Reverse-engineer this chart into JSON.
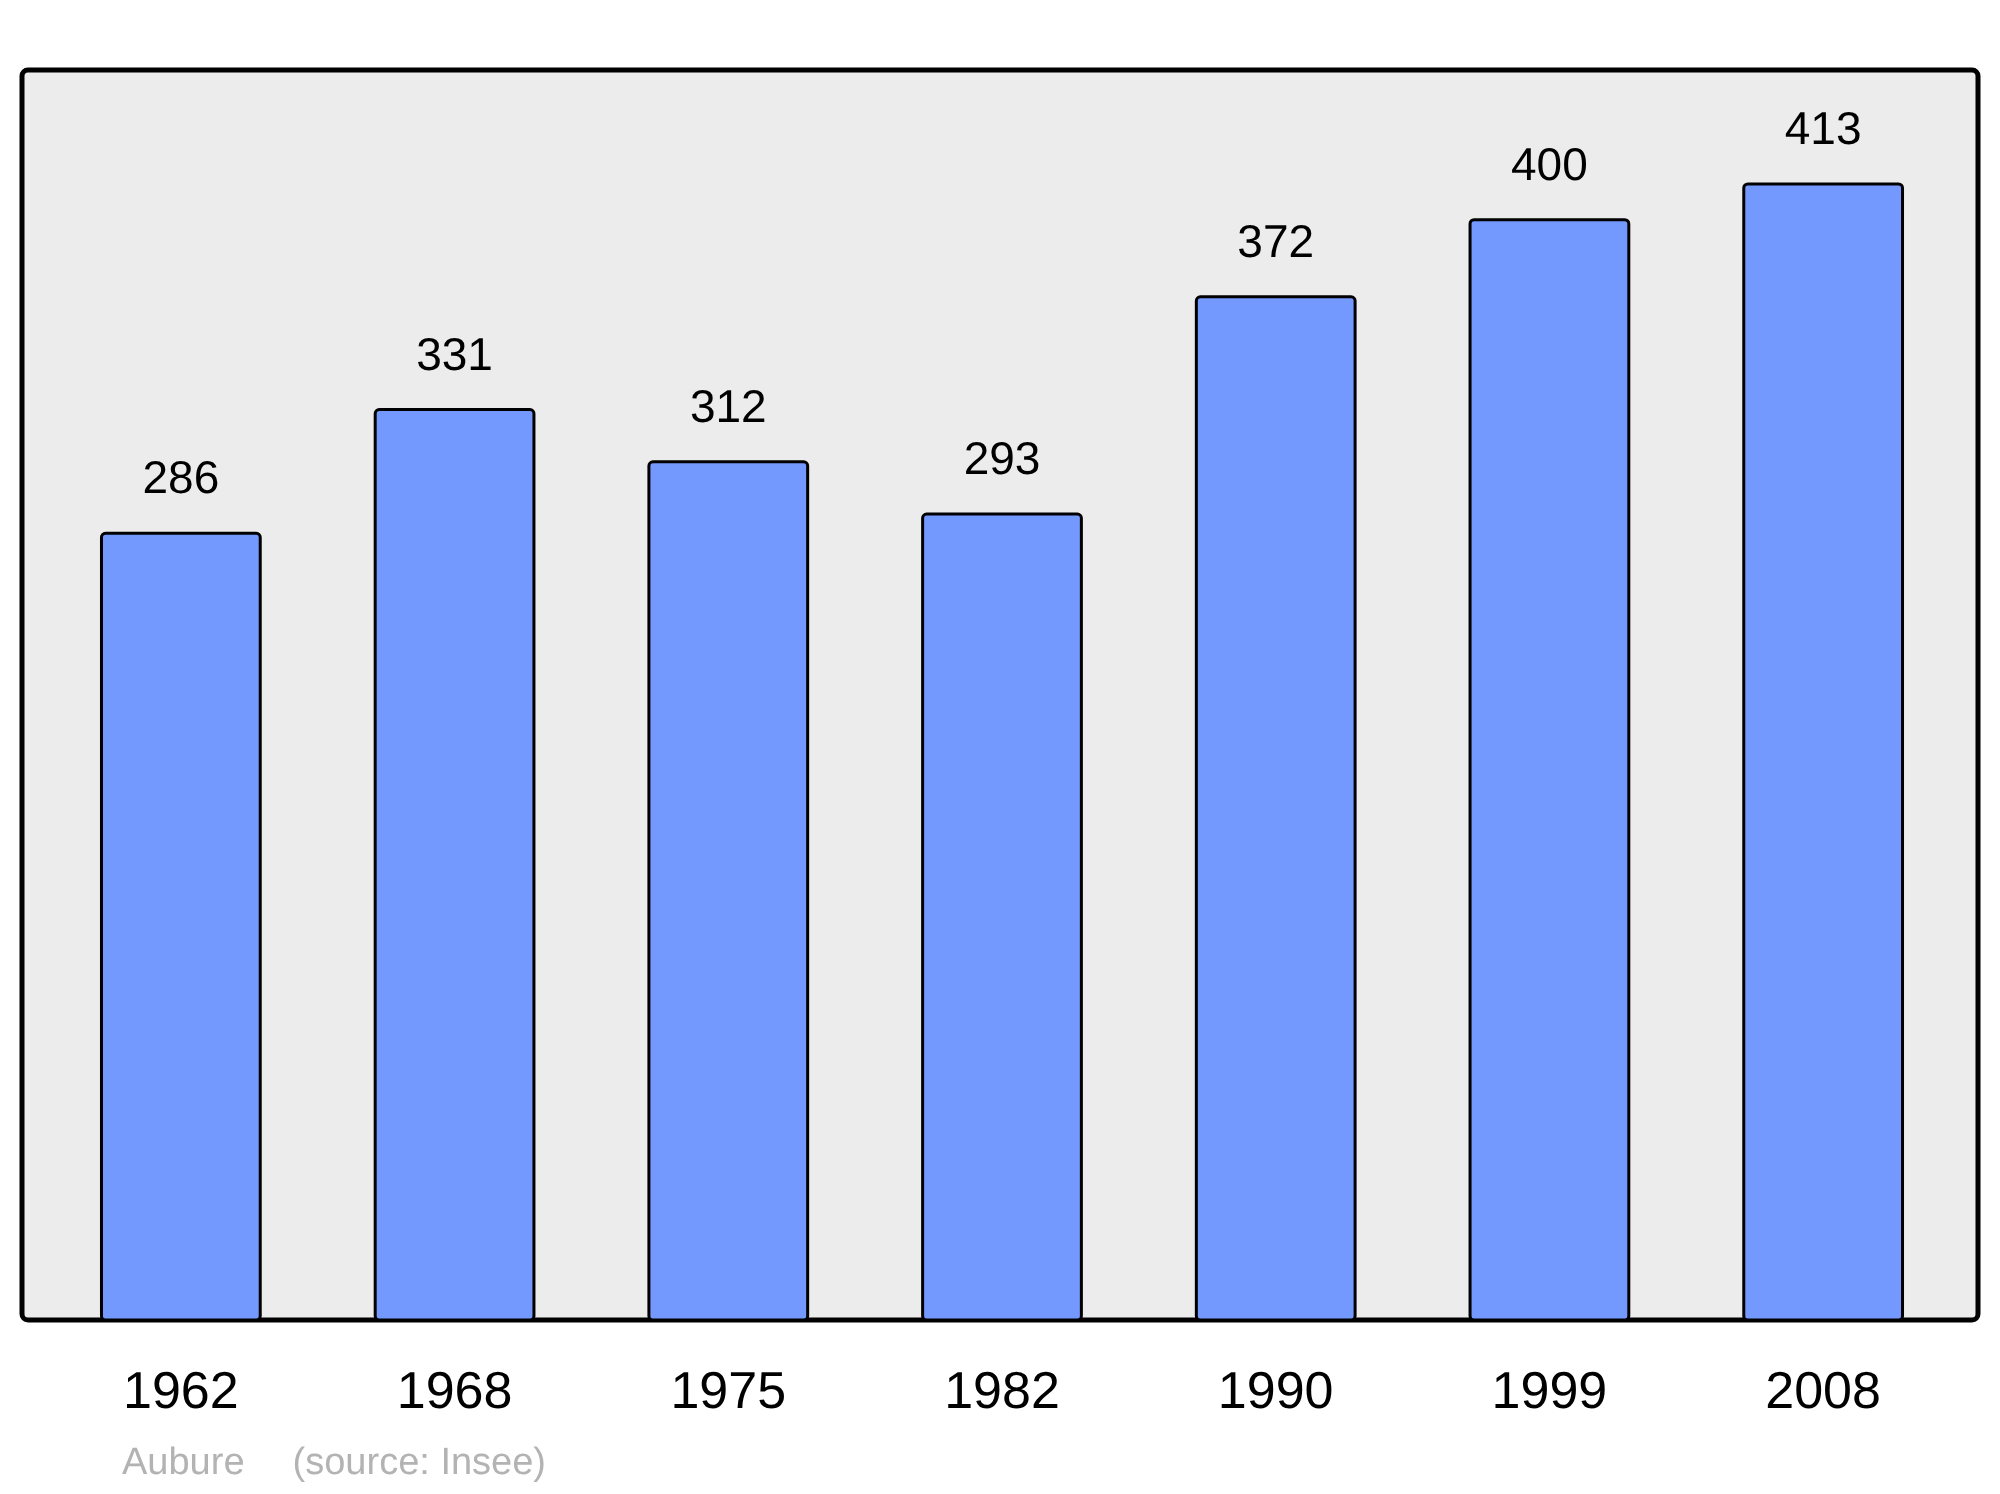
{
  "chart_data": {
    "type": "bar",
    "categories": [
      "1962",
      "1968",
      "1975",
      "1982",
      "1990",
      "1999",
      "2008"
    ],
    "values": [
      286,
      331,
      312,
      293,
      372,
      400,
      413
    ],
    "color": "#7399ff",
    "data_labels": true,
    "annotations": [
      "Aubure",
      "(source: Insee)"
    ]
  }
}
